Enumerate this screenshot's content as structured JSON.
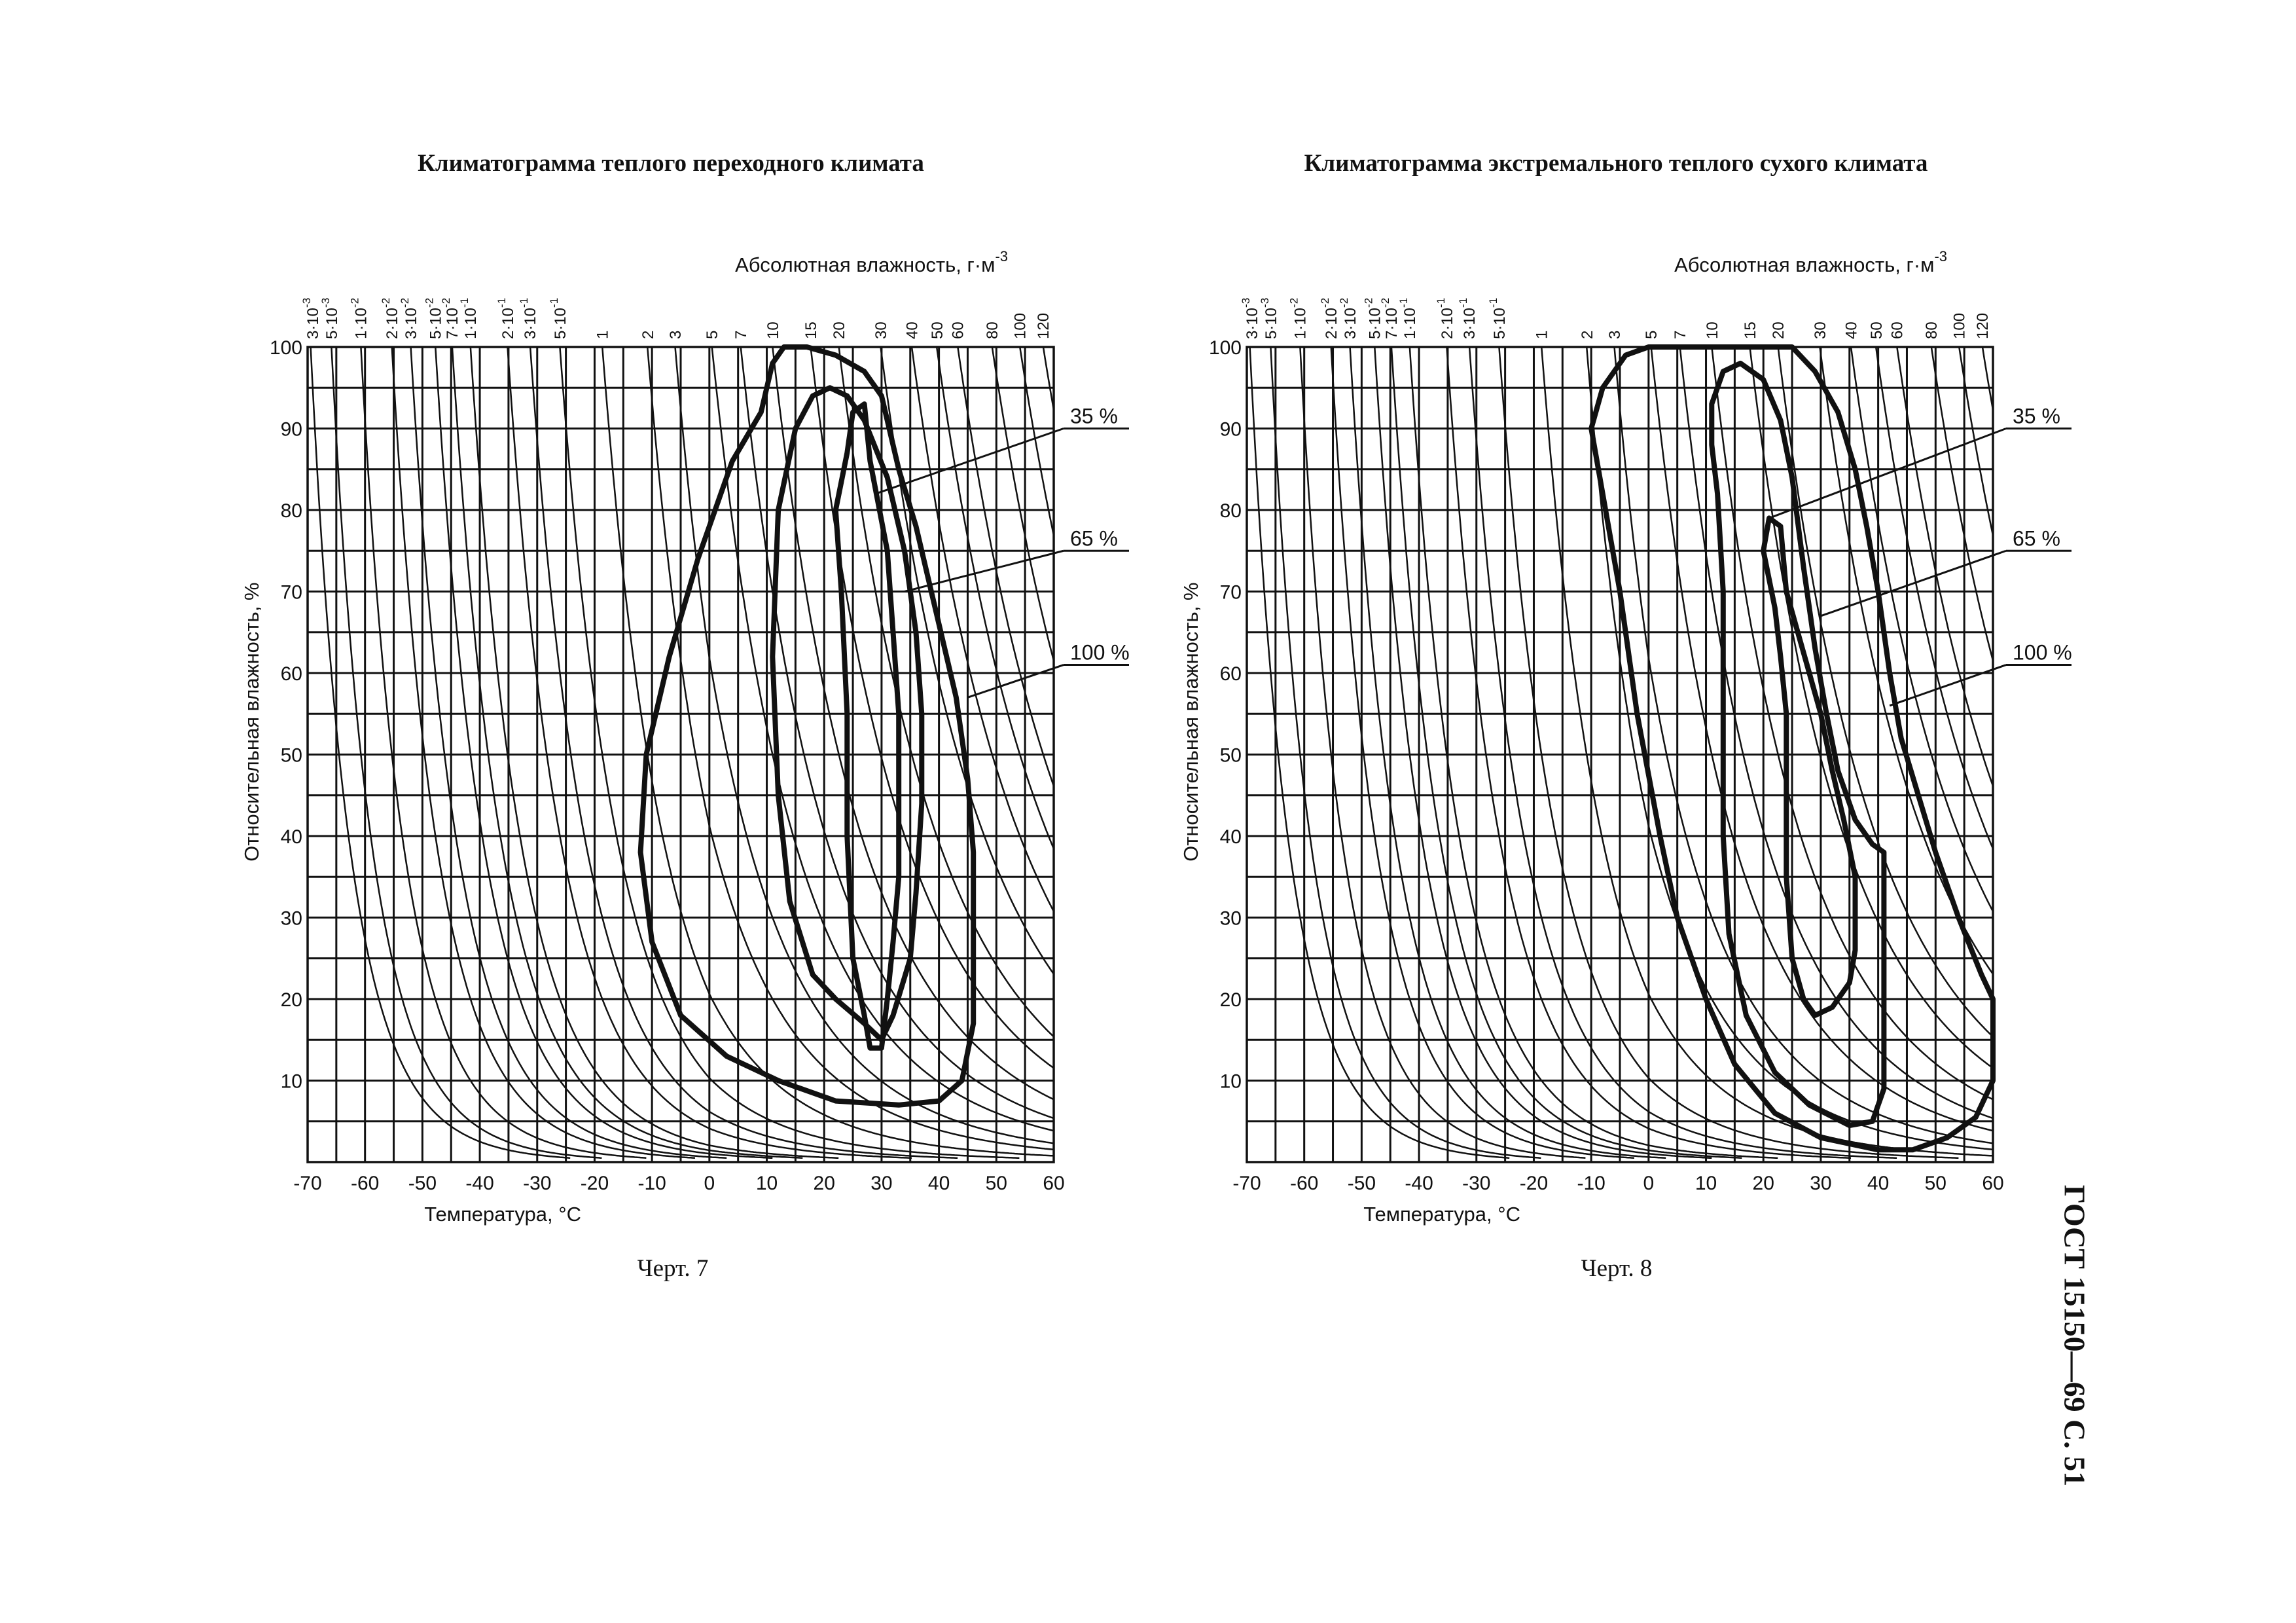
{
  "running_head": "ГОСТ 15150—69 С. 51",
  "charts": [
    {
      "title": "Климатограмма теплого переходного климата",
      "caption": "Черт. 7"
    },
    {
      "title": "Климатограмма экстремального теплого сухого климата",
      "caption": "Черт. 8"
    }
  ],
  "chart_data": [
    {
      "type": "line",
      "title": "Климатограмма теплого переходного климата",
      "xlabel": "Температура, °С",
      "ylabel": "Относительная влажность, %",
      "top_axis_label": "Абсолютная влажность, г·м",
      "top_axis_label_exponent": "-3",
      "xlim": [
        -70,
        60
      ],
      "ylim": [
        0,
        100
      ],
      "xticks": [
        "-70",
        "-60",
        "-50",
        "-40",
        "-30",
        "-20",
        "-10",
        "0",
        "10",
        "20",
        "30",
        "40",
        "50",
        "60"
      ],
      "yticks": [
        "10",
        "20",
        "30",
        "40",
        "50",
        "60",
        "70",
        "80",
        "90",
        "100"
      ],
      "grid": true,
      "absolute_humidity_lines": [
        {
          "label": "3·10",
          "exp": "-3",
          "value": 0.003
        },
        {
          "label": "5·10",
          "exp": "-3",
          "value": 0.005
        },
        {
          "label": "1·10",
          "exp": "-2",
          "value": 0.01
        },
        {
          "label": "2·10",
          "exp": "-2",
          "value": 0.02
        },
        {
          "label": "3·10",
          "exp": "-2",
          "value": 0.03
        },
        {
          "label": "5·10",
          "exp": "-2",
          "value": 0.05
        },
        {
          "label": "7·10",
          "exp": "-2",
          "value": 0.07
        },
        {
          "label": "1·10",
          "exp": "-1",
          "value": 0.1
        },
        {
          "label": "2·10",
          "exp": "-1",
          "value": 0.2
        },
        {
          "label": "3·10",
          "exp": "-1",
          "value": 0.3
        },
        {
          "label": "5·10",
          "exp": "-1",
          "value": 0.5
        },
        {
          "label": "1",
          "exp": "",
          "value": 1
        },
        {
          "label": "2",
          "exp": "",
          "value": 2
        },
        {
          "label": "3",
          "exp": "",
          "value": 3
        },
        {
          "label": "5",
          "exp": "",
          "value": 5
        },
        {
          "label": "7",
          "exp": "",
          "value": 7
        },
        {
          "label": "10",
          "exp": "",
          "value": 10
        },
        {
          "label": "15",
          "exp": "",
          "value": 15
        },
        {
          "label": "20",
          "exp": "",
          "value": 20
        },
        {
          "label": "30",
          "exp": "",
          "value": 30
        },
        {
          "label": "40",
          "exp": "",
          "value": 40
        },
        {
          "label": "50",
          "exp": "",
          "value": 50
        },
        {
          "label": "60",
          "exp": "",
          "value": 60
        },
        {
          "label": "80",
          "exp": "",
          "value": 80
        },
        {
          "label": "100",
          "exp": "",
          "value": 100
        },
        {
          "label": "120",
          "exp": "",
          "value": 120
        }
      ],
      "series": [
        {
          "name": "100 %",
          "points": [
            [
              9,
              92
            ],
            [
              11,
              98
            ],
            [
              13,
              100
            ],
            [
              17,
              100
            ],
            [
              22,
              99
            ],
            [
              27,
              97
            ],
            [
              30,
              94
            ],
            [
              33,
              85
            ],
            [
              36,
              78
            ],
            [
              40,
              66
            ],
            [
              43,
              57
            ],
            [
              45,
              47
            ],
            [
              46,
              38
            ],
            [
              46,
              28
            ],
            [
              46,
              17
            ],
            [
              44,
              10
            ],
            [
              40,
              7.5
            ],
            [
              33,
              7
            ],
            [
              22,
              7.5
            ],
            [
              12,
              10
            ],
            [
              3,
              13
            ],
            [
              -5,
              18
            ],
            [
              -10,
              27
            ],
            [
              -12,
              38
            ],
            [
              -11,
              50
            ],
            [
              -7,
              62
            ],
            [
              -2,
              74
            ],
            [
              4,
              86
            ],
            [
              9,
              92
            ]
          ]
        },
        {
          "name": "65 %",
          "points": [
            [
              12,
              80
            ],
            [
              15,
              90
            ],
            [
              18,
              94
            ],
            [
              21,
              95
            ],
            [
              24,
              94
            ],
            [
              27,
              91
            ],
            [
              31,
              84
            ],
            [
              34,
              75
            ],
            [
              36,
              65
            ],
            [
              37,
              55
            ],
            [
              37,
              44
            ],
            [
              36,
              33
            ],
            [
              35,
              25
            ],
            [
              32,
              18
            ],
            [
              30,
              15
            ],
            [
              27,
              17
            ],
            [
              22,
              20
            ],
            [
              18,
              23
            ],
            [
              14,
              32
            ],
            [
              12,
              45
            ],
            [
              11,
              62
            ],
            [
              12,
              80
            ]
          ]
        },
        {
          "name": "35 %",
          "points": [
            [
              22,
              80
            ],
            [
              24,
              87
            ],
            [
              25,
              92
            ],
            [
              27,
              93
            ],
            [
              28,
              86
            ],
            [
              31,
              75
            ],
            [
              32,
              65
            ],
            [
              33,
              55
            ],
            [
              33,
              45
            ],
            [
              33,
              35
            ],
            [
              32,
              27
            ],
            [
              31,
              20
            ],
            [
              30,
              14
            ],
            [
              28,
              14
            ],
            [
              27,
              18
            ],
            [
              25,
              25
            ],
            [
              24,
              40
            ],
            [
              24,
              55
            ],
            [
              23,
              70
            ],
            [
              22,
              80
            ]
          ]
        }
      ],
      "callouts": [
        "35 %",
        "65 %",
        "100 %"
      ]
    },
    {
      "type": "line",
      "title": "Климатограмма экстремального теплого сухого климата",
      "xlabel": "Температура, °С",
      "ylabel": "Относительная влажность, %",
      "top_axis_label": "Абсолютная влажность, г·м",
      "top_axis_label_exponent": "-3",
      "xlim": [
        -70,
        60
      ],
      "ylim": [
        0,
        100
      ],
      "xticks": [
        "-70",
        "-60",
        "-50",
        "-40",
        "-30",
        "-20",
        "-10",
        "0",
        "10",
        "20",
        "30",
        "40",
        "50",
        "60"
      ],
      "yticks": [
        "10",
        "20",
        "30",
        "40",
        "50",
        "60",
        "70",
        "80",
        "90",
        "100"
      ],
      "grid": true,
      "absolute_humidity_lines": [
        {
          "label": "3·10",
          "exp": "-3",
          "value": 0.003
        },
        {
          "label": "5·10",
          "exp": "-3",
          "value": 0.005
        },
        {
          "label": "1·10",
          "exp": "-2",
          "value": 0.01
        },
        {
          "label": "2·10",
          "exp": "-2",
          "value": 0.02
        },
        {
          "label": "3·10",
          "exp": "-2",
          "value": 0.03
        },
        {
          "label": "5·10",
          "exp": "-2",
          "value": 0.05
        },
        {
          "label": "7·10",
          "exp": "-2",
          "value": 0.07
        },
        {
          "label": "1·10",
          "exp": "-1",
          "value": 0.1
        },
        {
          "label": "2·10",
          "exp": "-1",
          "value": 0.2
        },
        {
          "label": "3·10",
          "exp": "-1",
          "value": 0.3
        },
        {
          "label": "5·10",
          "exp": "-1",
          "value": 0.5
        },
        {
          "label": "1",
          "exp": "",
          "value": 1
        },
        {
          "label": "2",
          "exp": "",
          "value": 2
        },
        {
          "label": "3",
          "exp": "",
          "value": 3
        },
        {
          "label": "5",
          "exp": "",
          "value": 5
        },
        {
          "label": "7",
          "exp": "",
          "value": 7
        },
        {
          "label": "10",
          "exp": "",
          "value": 10
        },
        {
          "label": "15",
          "exp": "",
          "value": 15
        },
        {
          "label": "20",
          "exp": "",
          "value": 20
        },
        {
          "label": "30",
          "exp": "",
          "value": 30
        },
        {
          "label": "40",
          "exp": "",
          "value": 40
        },
        {
          "label": "50",
          "exp": "",
          "value": 50
        },
        {
          "label": "60",
          "exp": "",
          "value": 60
        },
        {
          "label": "80",
          "exp": "",
          "value": 80
        },
        {
          "label": "100",
          "exp": "",
          "value": 100
        },
        {
          "label": "120",
          "exp": "",
          "value": 120
        }
      ],
      "series": [
        {
          "name": "100 %",
          "points": [
            [
              -10,
              90
            ],
            [
              -8,
              95
            ],
            [
              -4,
              99
            ],
            [
              0,
              100
            ],
            [
              25,
              100
            ],
            [
              29,
              97
            ],
            [
              33,
              92
            ],
            [
              36,
              85
            ],
            [
              38,
              78
            ],
            [
              40,
              70
            ],
            [
              42,
              60
            ],
            [
              44,
              52
            ],
            [
              47,
              45
            ],
            [
              50,
              38
            ],
            [
              54,
              30
            ],
            [
              58,
              23
            ],
            [
              60,
              20
            ],
            [
              60,
              10
            ],
            [
              57,
              5.5
            ],
            [
              52,
              3
            ],
            [
              46,
              1.5
            ],
            [
              40,
              1.5
            ],
            [
              30,
              3
            ],
            [
              22,
              6
            ],
            [
              15,
              12
            ],
            [
              10,
              20
            ],
            [
              5,
              30
            ],
            [
              2,
              40
            ],
            [
              -2,
              55
            ],
            [
              -5,
              70
            ],
            [
              -8,
              82
            ],
            [
              -10,
              90
            ]
          ]
        },
        {
          "name": "65 %",
          "points": [
            [
              11,
              93
            ],
            [
              13,
              97
            ],
            [
              16,
              98
            ],
            [
              20,
              96
            ],
            [
              23,
              91
            ],
            [
              25,
              84
            ],
            [
              27,
              73
            ],
            [
              29,
              63
            ],
            [
              31,
              55
            ],
            [
              33,
              48
            ],
            [
              36,
              42
            ],
            [
              39,
              39
            ],
            [
              41,
              38
            ],
            [
              41,
              20
            ],
            [
              41,
              9
            ],
            [
              39,
              5
            ],
            [
              35,
              4.5
            ],
            [
              28,
              7
            ],
            [
              22,
              11
            ],
            [
              17,
              18
            ],
            [
              14,
              28
            ],
            [
              13,
              40
            ],
            [
              13,
              55
            ],
            [
              13,
              70
            ],
            [
              12,
              82
            ],
            [
              11,
              88
            ],
            [
              11,
              93
            ]
          ]
        },
        {
          "name": "35 %",
          "points": [
            [
              20,
              75
            ],
            [
              21,
              79
            ],
            [
              23,
              78
            ],
            [
              24,
              70
            ],
            [
              26,
              65
            ],
            [
              28,
              60
            ],
            [
              30,
              55
            ],
            [
              32,
              48
            ],
            [
              34,
              42
            ],
            [
              36,
              35
            ],
            [
              36,
              26
            ],
            [
              35,
              22
            ],
            [
              32,
              19
            ],
            [
              29,
              18
            ],
            [
              27,
              20
            ],
            [
              25,
              25
            ],
            [
              24,
              35
            ],
            [
              24,
              45
            ],
            [
              24,
              55
            ],
            [
              23,
              62
            ],
            [
              22,
              68
            ],
            [
              20,
              75
            ]
          ]
        }
      ],
      "callouts": [
        "35 %",
        "65 %",
        "100 %"
      ]
    }
  ]
}
